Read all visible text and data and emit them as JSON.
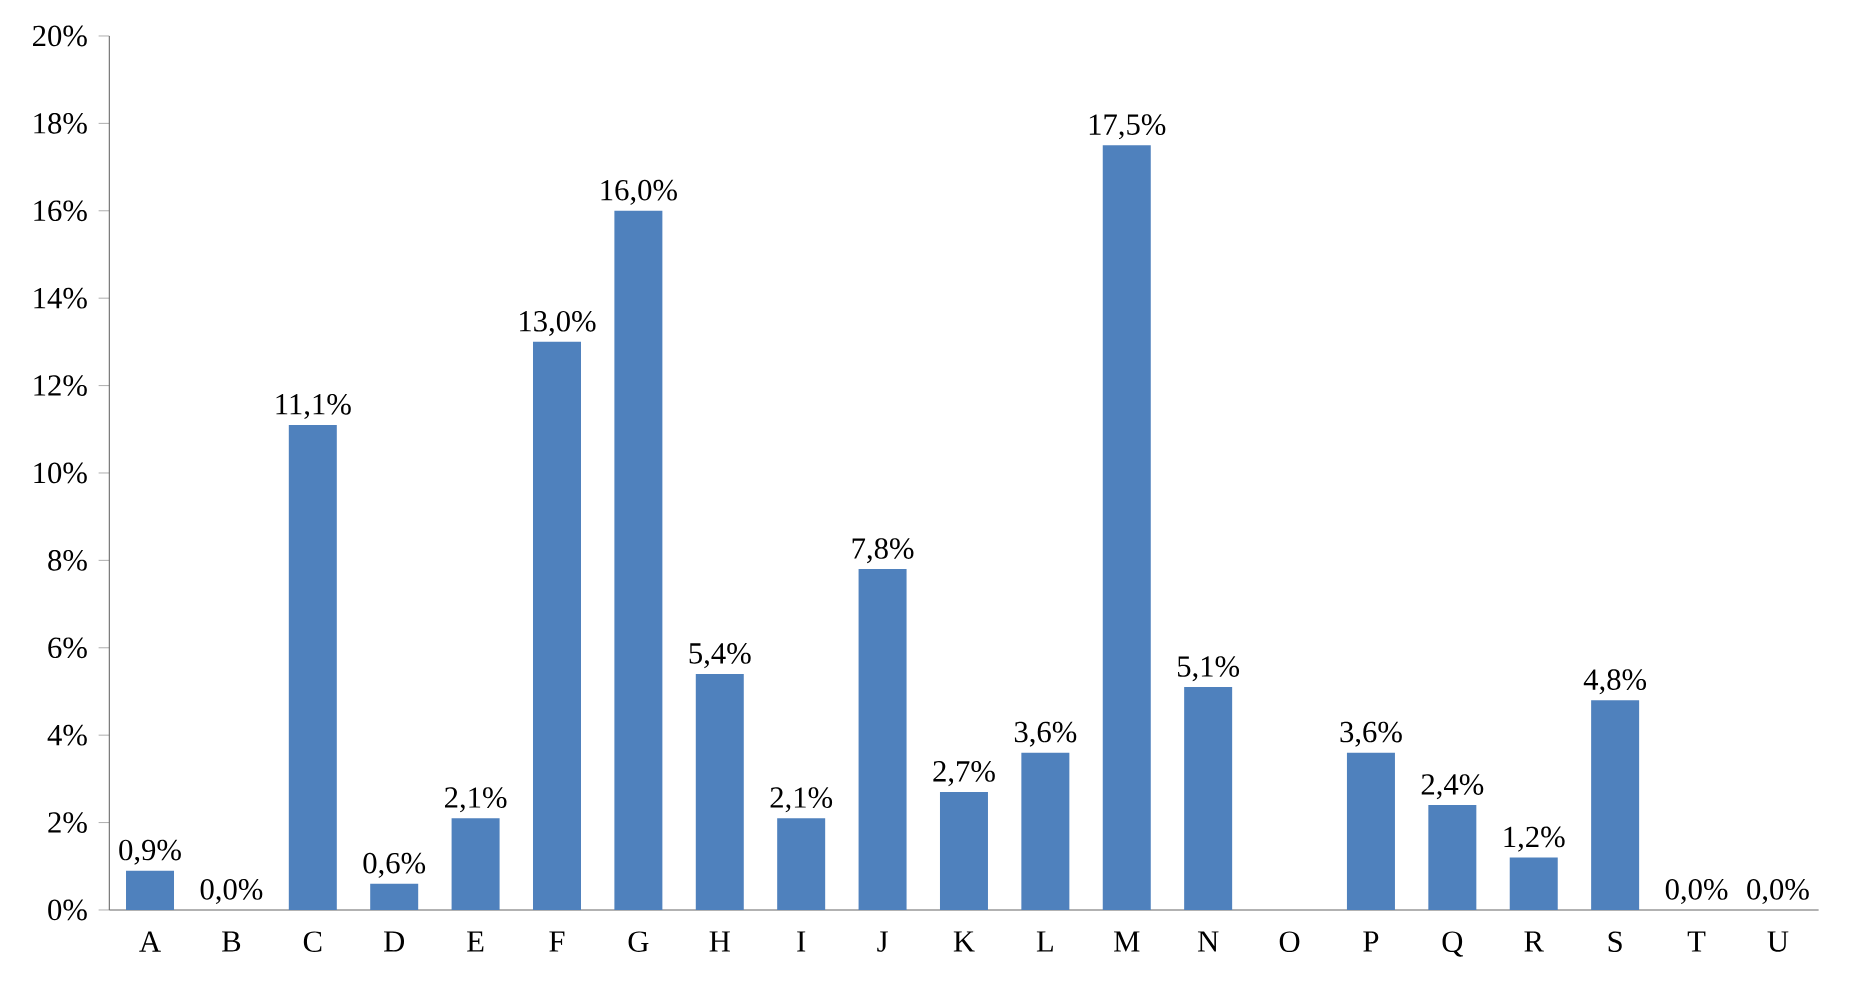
{
  "chart_data": {
    "type": "bar",
    "categories": [
      "A",
      "B",
      "C",
      "D",
      "E",
      "F",
      "G",
      "H",
      "I",
      "J",
      "K",
      "L",
      "M",
      "N",
      "O",
      "P",
      "Q",
      "R",
      "S",
      "T",
      "U"
    ],
    "values": [
      0.9,
      0.0,
      11.1,
      0.6,
      2.1,
      13.0,
      16.0,
      5.4,
      2.1,
      7.8,
      2.7,
      3.6,
      17.5,
      5.1,
      null,
      3.6,
      2.4,
      1.2,
      4.8,
      0.0,
      0.0
    ],
    "value_labels": [
      "0,9%",
      "0,0%",
      "11,1%",
      "0,6%",
      "2,1%",
      "13,0%",
      "16,0%",
      "5,4%",
      "2,1%",
      "7,8%",
      "2,7%",
      "3,6%",
      "17,5%",
      "5,1%",
      null,
      "3,6%",
      "2,4%",
      "1,2%",
      "4,8%",
      "0,0%",
      "0,0%"
    ],
    "color": "#4f81bd",
    "ylim": [
      0,
      20
    ],
    "yticks": [
      {
        "value": 0,
        "label": "0%"
      },
      {
        "value": 2,
        "label": "2%"
      },
      {
        "value": 4,
        "label": "4%"
      },
      {
        "value": 6,
        "label": "6%"
      },
      {
        "value": 8,
        "label": "8%"
      },
      {
        "value": 10,
        "label": "10%"
      },
      {
        "value": 12,
        "label": "12%"
      },
      {
        "value": 14,
        "label": "14%"
      },
      {
        "value": 16,
        "label": "16%"
      },
      {
        "value": 18,
        "label": "18%"
      },
      {
        "value": 20,
        "label": "20%"
      }
    ]
  }
}
